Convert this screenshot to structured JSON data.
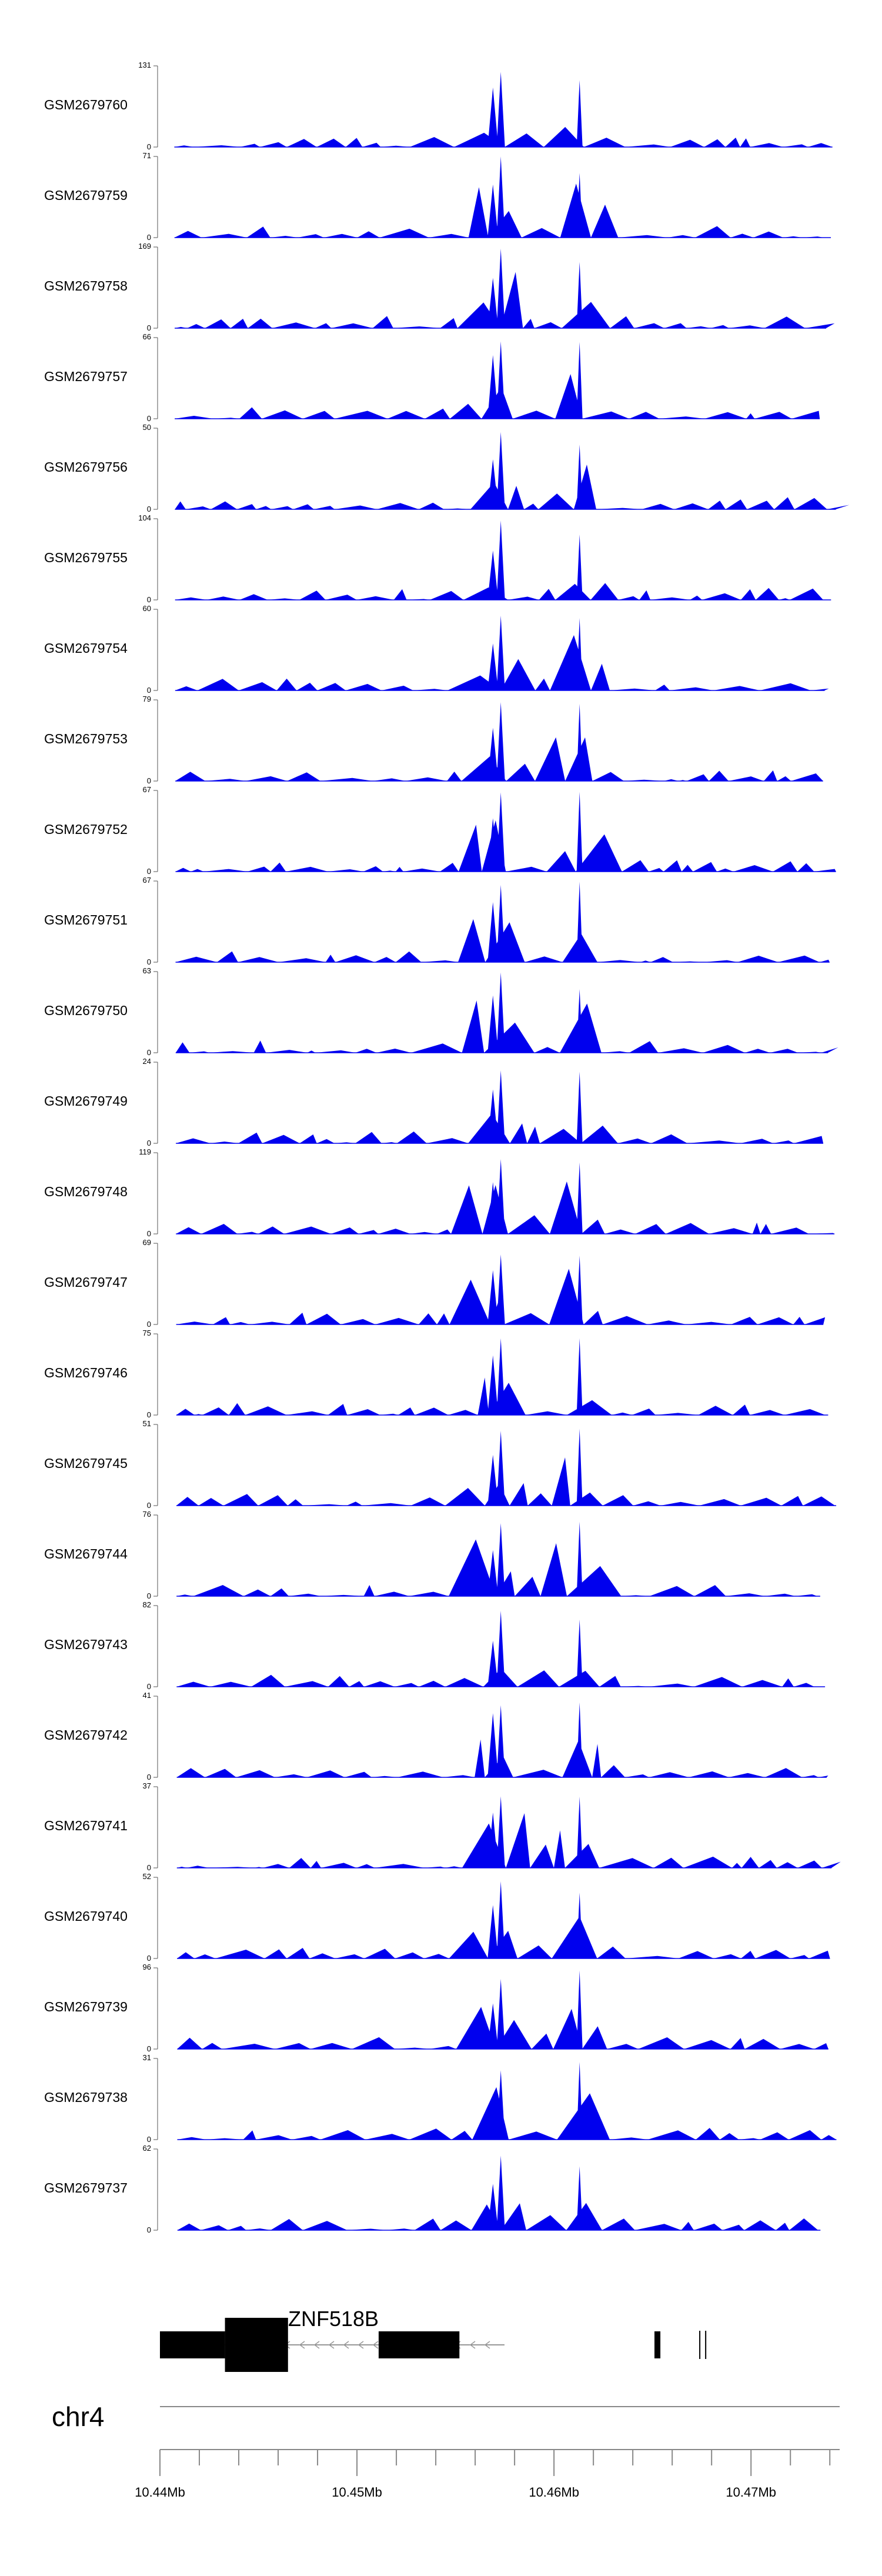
{
  "chart_data": {
    "type": "area",
    "fill_color": "#0000ee",
    "x_unit": "Mb",
    "xlim": [
      10.44,
      10.4745
    ],
    "tracks": [
      {
        "name": "GSM2679760",
        "ymax": "131",
        "ymin": "0",
        "seed": 11
      },
      {
        "name": "GSM2679759",
        "ymax": "71",
        "ymin": "0",
        "seed": 23
      },
      {
        "name": "GSM2679758",
        "ymax": "169",
        "ymin": "0",
        "seed": 37
      },
      {
        "name": "GSM2679757",
        "ymax": "66",
        "ymin": "0",
        "seed": 41
      },
      {
        "name": "GSM2679756",
        "ymax": "50",
        "ymin": "0",
        "seed": 53
      },
      {
        "name": "GSM2679755",
        "ymax": "104",
        "ymin": "0",
        "seed": 67
      },
      {
        "name": "GSM2679754",
        "ymax": "60",
        "ymin": "0",
        "seed": 71
      },
      {
        "name": "GSM2679753",
        "ymax": "79",
        "ymin": "0",
        "seed": 83
      },
      {
        "name": "GSM2679752",
        "ymax": "67",
        "ymin": "0",
        "seed": 97
      },
      {
        "name": "GSM2679751",
        "ymax": "67",
        "ymin": "0",
        "seed": 101
      },
      {
        "name": "GSM2679750",
        "ymax": "63",
        "ymin": "0",
        "seed": 113
      },
      {
        "name": "GSM2679749",
        "ymax": "24",
        "ymin": "0",
        "seed": 127
      },
      {
        "name": "GSM2679748",
        "ymax": "119",
        "ymin": "0",
        "seed": 131
      },
      {
        "name": "GSM2679747",
        "ymax": "69",
        "ymin": "0",
        "seed": 149
      },
      {
        "name": "GSM2679746",
        "ymax": "75",
        "ymin": "0",
        "seed": 157
      },
      {
        "name": "GSM2679745",
        "ymax": "51",
        "ymin": "0",
        "seed": 163
      },
      {
        "name": "GSM2679744",
        "ymax": "76",
        "ymin": "0",
        "seed": 173
      },
      {
        "name": "GSM2679743",
        "ymax": "82",
        "ymin": "0",
        "seed": 181
      },
      {
        "name": "GSM2679742",
        "ymax": "41",
        "ymin": "0",
        "seed": 191
      },
      {
        "name": "GSM2679741",
        "ymax": "37",
        "ymin": "0",
        "seed": 199
      },
      {
        "name": "GSM2679740",
        "ymax": "52",
        "ymin": "0",
        "seed": 211
      },
      {
        "name": "GSM2679739",
        "ymax": "96",
        "ymin": "0",
        "seed": 223
      },
      {
        "name": "GSM2679738",
        "ymax": "31",
        "ymin": "0",
        "seed": 229
      },
      {
        "name": "GSM2679737",
        "ymax": "62",
        "ymin": "0",
        "seed": 239
      }
    ],
    "peaks_mb": [
      10.4569,
      10.4573,
      10.4613
    ],
    "gene": {
      "name": "ZNF518B",
      "strand": "-",
      "utr_blocks_mb": [
        [
          10.44,
          10.4433
        ],
        [
          10.4651,
          10.4654
        ]
      ],
      "cds_blocks_mb": [
        [
          10.4433,
          10.4465
        ],
        [
          10.4511,
          10.4552
        ]
      ],
      "tss_marks_mb": [
        10.4674,
        10.4677
      ]
    },
    "axis": {
      "chromosome": "chr4",
      "tick_labels": [
        "10.44Mb",
        "10.45Mb",
        "10.46Mb",
        "10.47Mb"
      ],
      "tick_values_mb": [
        10.44,
        10.45,
        10.46,
        10.47
      ],
      "minor_step_mb": 0.002
    }
  }
}
